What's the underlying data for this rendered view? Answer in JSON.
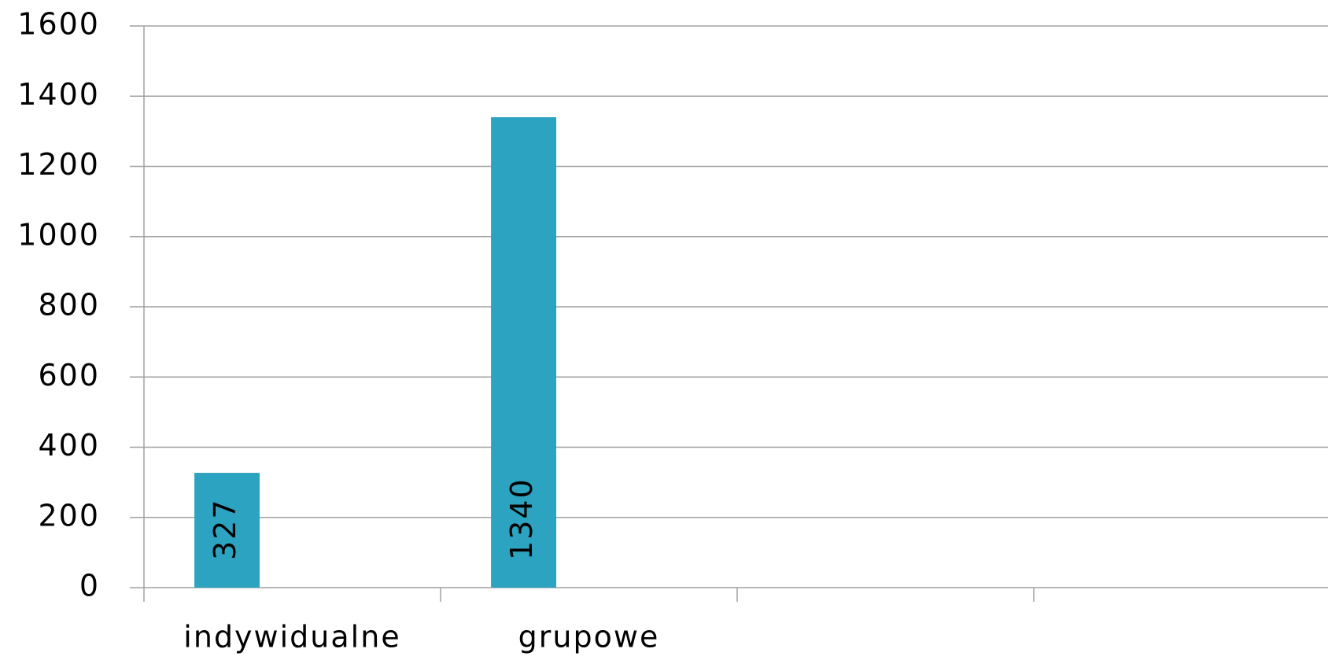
{
  "chart_data": {
    "type": "bar",
    "categories": [
      "indywidualne",
      "grupowe",
      null,
      null
    ],
    "values": [
      327,
      1340,
      null,
      null
    ],
    "color": "#2ca3c0",
    "ylim": [
      0,
      1600
    ],
    "yticks": [
      0,
      200,
      400,
      600,
      800,
      1000,
      1200,
      1400,
      1600
    ],
    "grid": true
  }
}
